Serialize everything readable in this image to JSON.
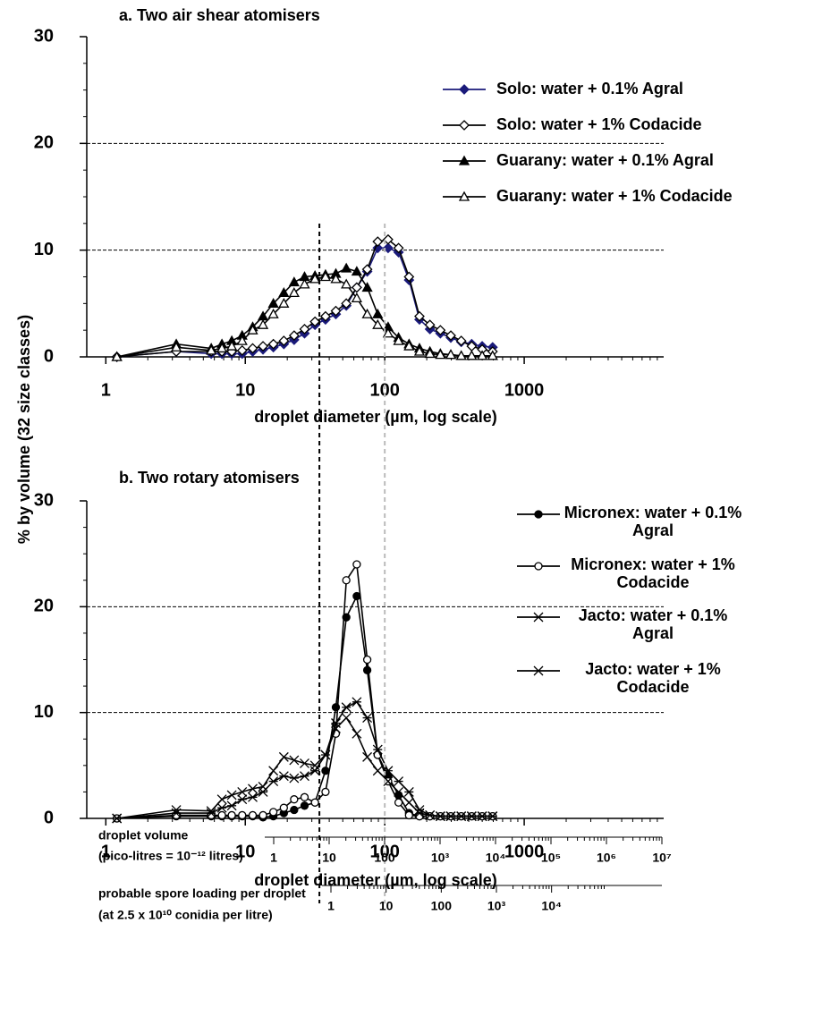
{
  "chart_data": [
    {
      "type": "line",
      "title": "a. Two air shear atomisers",
      "xlabel": "droplet diameter (µm, log scale)",
      "xscale": "log",
      "xlim": [
        0.73,
        10000
      ],
      "xticks": [
        1,
        10,
        100,
        1000
      ],
      "ylim": [
        0,
        30
      ],
      "yticks": [
        0,
        10,
        20,
        30
      ],
      "hlines": [
        10,
        20
      ],
      "x": [
        1.2,
        3.2,
        5.7,
        6.8,
        8.0,
        9.5,
        11.3,
        13.4,
        15.9,
        18.9,
        22.4,
        26.6,
        31.6,
        37.6,
        44.6,
        53.0,
        63.0,
        74.9,
        89.0,
        105.7,
        125.6,
        149.3,
        177.4,
        210.8,
        250.5,
        297.6,
        353.6,
        420.2,
        499.4,
        593.4
      ],
      "series": [
        {
          "name": "Solo: water + 0.1% Agral",
          "color": "#1a1a7a",
          "marker": "diamond-filled",
          "values": [
            0,
            0.5,
            0.3,
            0.3,
            0.3,
            0.3,
            0.5,
            0.7,
            0.9,
            1.2,
            1.6,
            2.2,
            3.0,
            3.5,
            4.0,
            4.8,
            6.5,
            8.0,
            10.2,
            10.2,
            9.8,
            7.2,
            3.5,
            2.6,
            2.2,
            1.8,
            1.4,
            1.2,
            1.0,
            0.9
          ]
        },
        {
          "name": "Solo: water + 1% Codacide",
          "color": "#000000",
          "marker": "diamond-open",
          "values": [
            0,
            0.5,
            0.5,
            0.5,
            0.5,
            0.6,
            0.8,
            1.0,
            1.2,
            1.5,
            2.0,
            2.6,
            3.3,
            3.8,
            4.3,
            5.0,
            6.5,
            8.2,
            10.8,
            11.0,
            10.2,
            7.5,
            3.8,
            3.0,
            2.5,
            2.0,
            1.5,
            1.0,
            0.7,
            0.5
          ]
        },
        {
          "name": "Guarany: water + 0.1% Agral",
          "color": "#000000",
          "marker": "triangle-filled",
          "values": [
            0,
            1.2,
            0.8,
            1.2,
            1.5,
            2.0,
            2.8,
            3.8,
            5.0,
            6.0,
            7.0,
            7.5,
            7.6,
            7.7,
            7.8,
            8.3,
            8.0,
            6.5,
            4.0,
            2.8,
            1.8,
            1.2,
            0.8,
            0.5,
            0.3,
            0.2,
            0.1,
            0.1,
            0.1,
            0.1
          ]
        },
        {
          "name": "Guarany: water + 1% Codacide",
          "color": "#000000",
          "marker": "triangle-open",
          "values": [
            0,
            0.9,
            0.6,
            0.8,
            1.0,
            1.5,
            2.5,
            3.0,
            4.0,
            5.0,
            6.0,
            6.8,
            7.3,
            7.5,
            7.3,
            6.8,
            5.5,
            4.0,
            3.0,
            2.2,
            1.5,
            1.0,
            0.5,
            0.3,
            0.2,
            0.2,
            0.1,
            0.1,
            0.1,
            0.1
          ]
        }
      ]
    },
    {
      "type": "line",
      "title": "b. Two rotary atomisers",
      "xlabel": "droplet diameter (µm, log scale)",
      "xscale": "log",
      "xlim": [
        0.73,
        10000
      ],
      "xticks": [
        1,
        10,
        100,
        1000
      ],
      "ylim": [
        0,
        30
      ],
      "yticks": [
        0,
        10,
        20,
        30
      ],
      "hlines": [
        10,
        20
      ],
      "x": [
        1.2,
        3.2,
        5.7,
        6.8,
        8.0,
        9.5,
        11.3,
        13.4,
        15.9,
        18.9,
        22.4,
        26.6,
        31.6,
        37.6,
        44.6,
        53.0,
        63.0,
        74.9,
        89.0,
        105.7,
        125.6,
        149.3,
        177.4,
        210.8,
        250.5,
        297.6,
        353.6,
        420.2,
        499.4,
        593.4
      ],
      "series": [
        {
          "name": "Micronex: water + 0.1% Agral",
          "color": "#000000",
          "marker": "circle-filled",
          "values": [
            0,
            0.2,
            0.2,
            0.2,
            0.2,
            0.2,
            0.2,
            0.1,
            0.2,
            0.5,
            0.8,
            1.2,
            1.5,
            4.5,
            10.5,
            19,
            21,
            14,
            6,
            4,
            2.2,
            0.5,
            0.2,
            0.2,
            0.2,
            0.2,
            0.2,
            0.2,
            0.2,
            0.2
          ]
        },
        {
          "name": "Micronex: water + 1% Codacide",
          "color": "#000000",
          "marker": "circle-open",
          "values": [
            0,
            0.3,
            0.3,
            0.3,
            0.3,
            0.3,
            0.3,
            0.3,
            0.6,
            1.0,
            1.8,
            2.0,
            1.5,
            2.5,
            8,
            22.5,
            24,
            15,
            6,
            3.5,
            1.5,
            0.3,
            0.2,
            0.2,
            0.2,
            0.2,
            0.2,
            0.2,
            0.2,
            0.2
          ]
        },
        {
          "name": "Jacto: water + 0.1% Agral",
          "color": "#000000",
          "marker": "star",
          "values": [
            0,
            0.5,
            0.5,
            1.0,
            1.2,
            1.8,
            2.0,
            2.5,
            3.5,
            4.0,
            3.8,
            4.0,
            4.5,
            6.0,
            9.0,
            10.5,
            11,
            9.5,
            6.5,
            4.5,
            3.5,
            2.5,
            0.8,
            0.3,
            0.2,
            0.2,
            0.2,
            0.2,
            0.2,
            0.2
          ]
        },
        {
          "name": "Jacto: water + 1% Codacide",
          "color": "#000000",
          "marker": "cross",
          "values": [
            0,
            0.8,
            0.7,
            1.8,
            2.2,
            2.5,
            2.8,
            3.0,
            4.5,
            5.8,
            5.5,
            5.2,
            5.0,
            6.0,
            8.5,
            9.5,
            8.0,
            5.8,
            4.5,
            3.5,
            2.5,
            1.5,
            0.5,
            0.3,
            0.2,
            0.2,
            0.2,
            0.2,
            0.2,
            0.2
          ]
        }
      ]
    }
  ],
  "ylabel": "% by volume (32 size classes)",
  "vlines": [
    {
      "value": 34,
      "color": "#000000"
    },
    {
      "value": 100,
      "color": "#bbbbbb"
    }
  ],
  "secondary_scales": [
    {
      "label": [
        "droplet volume",
        "(pico-litres = 10⁻¹² litres)"
      ],
      "xlim": [
        1,
        10000000
      ],
      "xticks": [
        1,
        10,
        100,
        {
          "value": 1000,
          "label": "10³"
        },
        {
          "value": 10000,
          "label": "10⁴"
        },
        {
          "value": 100000,
          "label": "10⁵"
        },
        {
          "value": 1000000,
          "label": "10⁶"
        },
        {
          "value": 10000000,
          "label": "10⁷"
        }
      ]
    },
    {
      "label": [
        "probable spore loading per droplet",
        "(at 2.5 x 10¹⁰ conidia per litre)"
      ],
      "xlim": [
        1,
        1000000
      ],
      "xticks": [
        1,
        10,
        100,
        {
          "value": 1000,
          "label": "10³"
        },
        {
          "value": 10000,
          "label": "10⁴"
        }
      ]
    }
  ]
}
